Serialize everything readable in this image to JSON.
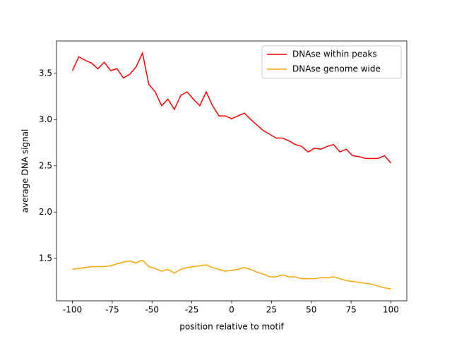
{
  "chart_data": {
    "type": "line",
    "xlabel": "position relative to motif",
    "ylabel": "average DNA signal",
    "x": [
      -100,
      -96,
      -92,
      -88,
      -84,
      -80,
      -76,
      -72,
      -68,
      -64,
      -60,
      -56,
      -52,
      -48,
      -44,
      -40,
      -36,
      -32,
      -28,
      -24,
      -20,
      -16,
      -12,
      -8,
      -4,
      0,
      4,
      8,
      12,
      16,
      20,
      24,
      28,
      32,
      36,
      40,
      44,
      48,
      52,
      56,
      60,
      64,
      68,
      72,
      76,
      80,
      84,
      88,
      92,
      96,
      100
    ],
    "series": [
      {
        "name": "DNAse within peaks",
        "color": "#ff0000",
        "values": [
          3.53,
          3.68,
          3.64,
          3.61,
          3.55,
          3.62,
          3.53,
          3.55,
          3.45,
          3.49,
          3.57,
          3.72,
          3.38,
          3.3,
          3.15,
          3.22,
          3.11,
          3.26,
          3.3,
          3.22,
          3.15,
          3.3,
          3.15,
          3.04,
          3.04,
          3.01,
          3.04,
          3.07,
          3.0,
          2.94,
          2.88,
          2.84,
          2.8,
          2.8,
          2.77,
          2.73,
          2.71,
          2.65,
          2.69,
          2.68,
          2.71,
          2.73,
          2.65,
          2.68,
          2.61,
          2.6,
          2.58,
          2.58,
          2.58,
          2.61,
          2.53
        ]
      },
      {
        "name": "DNAse genome wide",
        "color": "#ffa500",
        "values": [
          1.38,
          1.39,
          1.4,
          1.41,
          1.41,
          1.41,
          1.42,
          1.44,
          1.46,
          1.47,
          1.45,
          1.48,
          1.41,
          1.39,
          1.36,
          1.38,
          1.34,
          1.38,
          1.4,
          1.41,
          1.42,
          1.43,
          1.4,
          1.38,
          1.36,
          1.37,
          1.38,
          1.4,
          1.38,
          1.35,
          1.33,
          1.3,
          1.3,
          1.32,
          1.3,
          1.3,
          1.28,
          1.28,
          1.28,
          1.29,
          1.29,
          1.3,
          1.28,
          1.26,
          1.25,
          1.24,
          1.23,
          1.22,
          1.2,
          1.18,
          1.17
        ]
      }
    ],
    "xlim": [
      -110,
      110
    ],
    "xticks": [
      -100,
      -75,
      -50,
      -25,
      0,
      25,
      50,
      75,
      100
    ],
    "ylim": [
      1.04,
      3.85
    ],
    "yticks": [
      1.5,
      {
        "value": 2.0,
        "label": "2.0"
      },
      2.5,
      {
        "value": 3.0,
        "label": "3.0"
      },
      3.5
    ],
    "legend": "upper right"
  }
}
